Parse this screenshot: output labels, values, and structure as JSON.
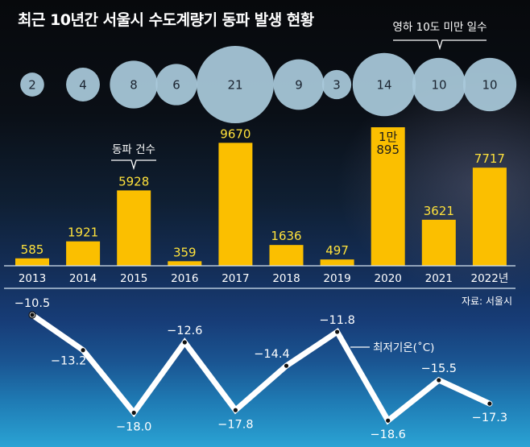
{
  "chart_data": {
    "type": "bar",
    "title": "최근 10년간 서울시 수도계량기 동파 발생 현황",
    "categories": [
      "2013",
      "2014",
      "2015",
      "2016",
      "2017",
      "2018",
      "2019",
      "2020",
      "2021",
      "2022년"
    ],
    "series": [
      {
        "name": "동파 건수",
        "type": "bar",
        "values": [
          585,
          1921,
          5928,
          359,
          9670,
          1636,
          497,
          10895,
          3621,
          7717
        ],
        "labels": [
          "585",
          "1921",
          "5928",
          "359",
          "9670",
          "1636",
          "497",
          [
            "1만",
            "895"
          ],
          "3621",
          "7717"
        ],
        "color": "#fbbf00"
      },
      {
        "name": "영하 10도 미만 일수",
        "type": "bubble",
        "values": [
          2,
          4,
          8,
          6,
          21,
          9,
          3,
          14,
          10,
          10
        ],
        "color": "#a9c9da"
      },
      {
        "name": "최저기온(℃)",
        "type": "line",
        "values": [
          -10.5,
          -13.2,
          -18.0,
          -12.6,
          -17.8,
          -14.4,
          -11.8,
          -18.6,
          -15.5,
          -17.3
        ],
        "labels": [
          "−10.5",
          "−13.2",
          "−18.0",
          "−12.6",
          "−17.8",
          "−14.4",
          "−11.8",
          "−18.6",
          "−15.5",
          "−17.3"
        ],
        "color": "#ffffff"
      }
    ],
    "annotations": {
      "bubble_callout": "영하 10도 미만 일수",
      "bar_callout": "동파 건수",
      "line_callout": "최저기온(˚C)",
      "source": "자료: 서울시"
    },
    "xlabel": "",
    "ylabel": "",
    "bar_ylim": [
      0,
      11000
    ],
    "line_ylim": [
      -19,
      -10
    ],
    "grid": false,
    "legend": "none"
  }
}
